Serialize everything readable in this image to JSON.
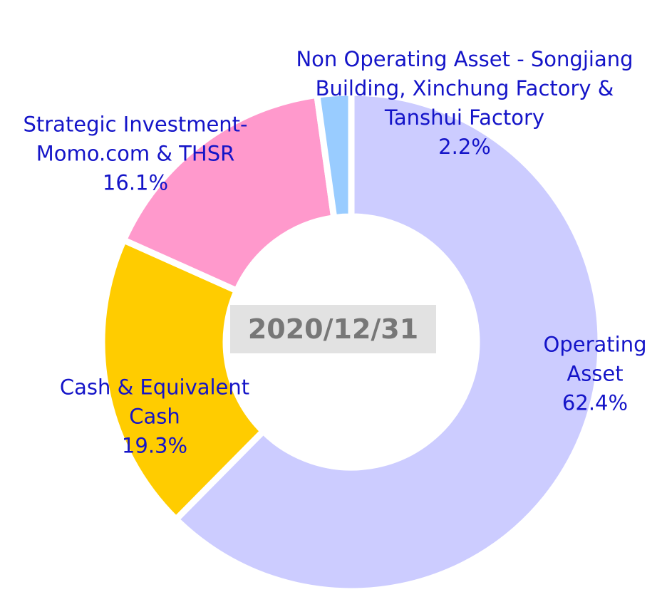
{
  "chart_data": {
    "type": "donut",
    "center_label": "2020/12/31",
    "categories": [
      "Operating Asset",
      "Cash & Equivalent Cash",
      "Strategic Investment-Momo.com & THSR",
      "Non Operating Asset - Songjiang Building, Xinchung Factory & Tanshui Factory"
    ],
    "values": [
      62.4,
      19.3,
      16.1,
      2.2
    ],
    "value_labels": [
      "62.4%",
      "19.3%",
      "16.1%",
      "2.2%"
    ],
    "colors": [
      "#ccccff",
      "#ffcc00",
      "#ff99cc",
      "#99ccff"
    ]
  }
}
